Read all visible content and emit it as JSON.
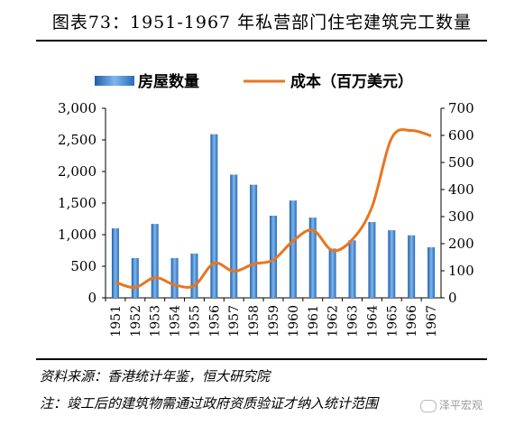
{
  "chart_data": {
    "type": "bar",
    "title": "图表73：1951-1967 年私营部门住宅建筑完工数量",
    "categories": [
      "1951",
      "1952",
      "1953",
      "1954",
      "1955",
      "1956",
      "1957",
      "1958",
      "1959",
      "1960",
      "1961",
      "1962",
      "1963",
      "1964",
      "1965",
      "1966",
      "1967"
    ],
    "series": [
      {
        "name": "房屋数量",
        "type": "bar",
        "axis": "left",
        "color": "#4a90d9",
        "values": [
          1100,
          630,
          1170,
          630,
          700,
          2590,
          1950,
          1790,
          1300,
          1540,
          1270,
          780,
          910,
          1200,
          1070,
          990,
          800
        ]
      },
      {
        "name": "成本（百万美元）",
        "type": "line",
        "axis": "right",
        "color": "#e8761f",
        "values": [
          58,
          38,
          75,
          48,
          45,
          128,
          98,
          125,
          140,
          210,
          250,
          175,
          215,
          335,
          590,
          618,
          598
        ]
      }
    ],
    "y_left": {
      "min": 0,
      "max": 3000,
      "ticks": [
        "0",
        "500",
        "1,000",
        "1,500",
        "2,000",
        "2,500",
        "3,000"
      ]
    },
    "y_right": {
      "min": 0,
      "max": 700,
      "ticks": [
        "0",
        "100",
        "200",
        "300",
        "400",
        "500",
        "600",
        "700"
      ]
    },
    "legend_position": "top",
    "grid": false
  },
  "footer": {
    "source": "资料来源：香港统计年鉴，恒大研究院",
    "note": "注：竣工后的建筑物需通过政府资质验证才纳入统计范围"
  },
  "watermark": {
    "text": "泽平宏观"
  }
}
